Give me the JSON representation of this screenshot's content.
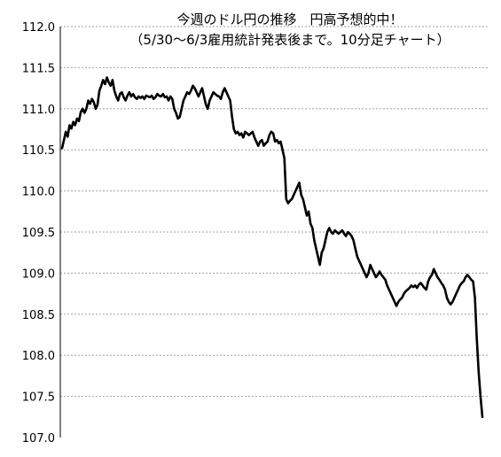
{
  "chart_data": {
    "type": "line",
    "title": "今週のドル円の推移　円高予想的中！",
    "subtitle": "（5/30～6/3雇用統計発表後まで。10分足チャート）",
    "xlabel": "",
    "ylabel": "",
    "ylim": [
      107.0,
      112.0
    ],
    "y_ticks": [
      "112.0",
      "111.5",
      "111.0",
      "110.5",
      "110.0",
      "109.5",
      "109.0",
      "108.5",
      "108.0",
      "107.5",
      "107.0"
    ],
    "grid": "horizontal dashed",
    "series": [
      {
        "values": [
          110.52,
          110.62,
          110.72,
          110.66,
          110.8,
          110.76,
          110.84,
          110.8,
          110.88,
          110.85,
          110.96,
          111.0,
          110.95,
          111.0,
          111.1,
          111.06,
          111.12,
          111.08,
          111.0,
          111.05,
          111.22,
          111.28,
          111.35,
          111.3,
          111.38,
          111.32,
          111.28,
          111.35,
          111.22,
          111.15,
          111.1,
          111.18,
          111.2,
          111.14,
          111.1,
          111.16,
          111.2,
          111.15,
          111.18,
          111.14,
          111.12,
          111.15,
          111.13,
          111.15,
          111.12,
          111.16,
          111.15,
          111.14,
          111.16,
          111.12,
          111.14,
          111.18,
          111.16,
          111.15,
          111.18,
          111.14,
          111.15,
          111.1,
          111.15,
          111.12,
          111.0,
          110.95,
          110.88,
          110.9,
          111.0,
          111.1,
          111.15,
          111.2,
          111.18,
          111.22,
          111.28,
          111.25,
          111.2,
          111.15,
          111.2,
          111.25,
          111.15,
          111.05,
          111.0,
          111.1,
          111.15,
          111.2,
          111.18,
          111.16,
          111.15,
          111.12,
          111.2,
          111.25,
          111.2,
          111.15,
          111.1,
          110.9,
          110.75,
          110.7,
          110.72,
          110.68,
          110.7,
          110.65,
          110.72,
          110.7,
          110.68,
          110.7,
          110.72,
          110.65,
          110.6,
          110.55,
          110.6,
          110.62,
          110.55,
          110.58,
          110.6,
          110.68,
          110.72,
          110.7,
          110.6,
          110.62,
          110.58,
          110.6,
          110.5,
          110.4,
          109.9,
          109.85,
          109.88,
          109.9,
          109.95,
          110.0,
          110.05,
          110.1,
          109.95,
          109.9,
          109.8,
          109.7,
          109.75,
          109.6,
          109.55,
          109.4,
          109.3,
          109.2,
          109.1,
          109.25,
          109.3,
          109.4,
          109.5,
          109.55,
          109.5,
          109.48,
          109.52,
          109.5,
          109.48,
          109.5,
          109.52,
          109.48,
          109.45,
          109.5,
          109.48,
          109.45,
          109.4,
          109.3,
          109.2,
          109.15,
          109.1,
          109.05,
          109.0,
          108.95,
          109.0,
          109.1,
          109.05,
          109.0,
          108.95,
          108.98,
          109.02,
          108.98,
          108.95,
          108.92,
          108.85,
          108.8,
          108.75,
          108.7,
          108.65,
          108.6,
          108.65,
          108.68,
          108.7,
          108.75,
          108.78,
          108.8,
          108.82,
          108.85,
          108.83,
          108.85,
          108.82,
          108.86,
          108.88,
          108.85,
          108.82,
          108.8,
          108.9,
          108.95,
          108.98,
          109.05,
          109.0,
          108.95,
          108.92,
          108.88,
          108.85,
          108.8,
          108.7,
          108.65,
          108.62,
          108.65,
          108.7,
          108.75,
          108.8,
          108.85,
          108.88,
          108.9,
          108.95,
          108.98,
          108.95,
          108.92,
          108.9,
          108.7,
          108.2,
          107.8,
          107.5,
          107.25
        ]
      }
    ]
  }
}
